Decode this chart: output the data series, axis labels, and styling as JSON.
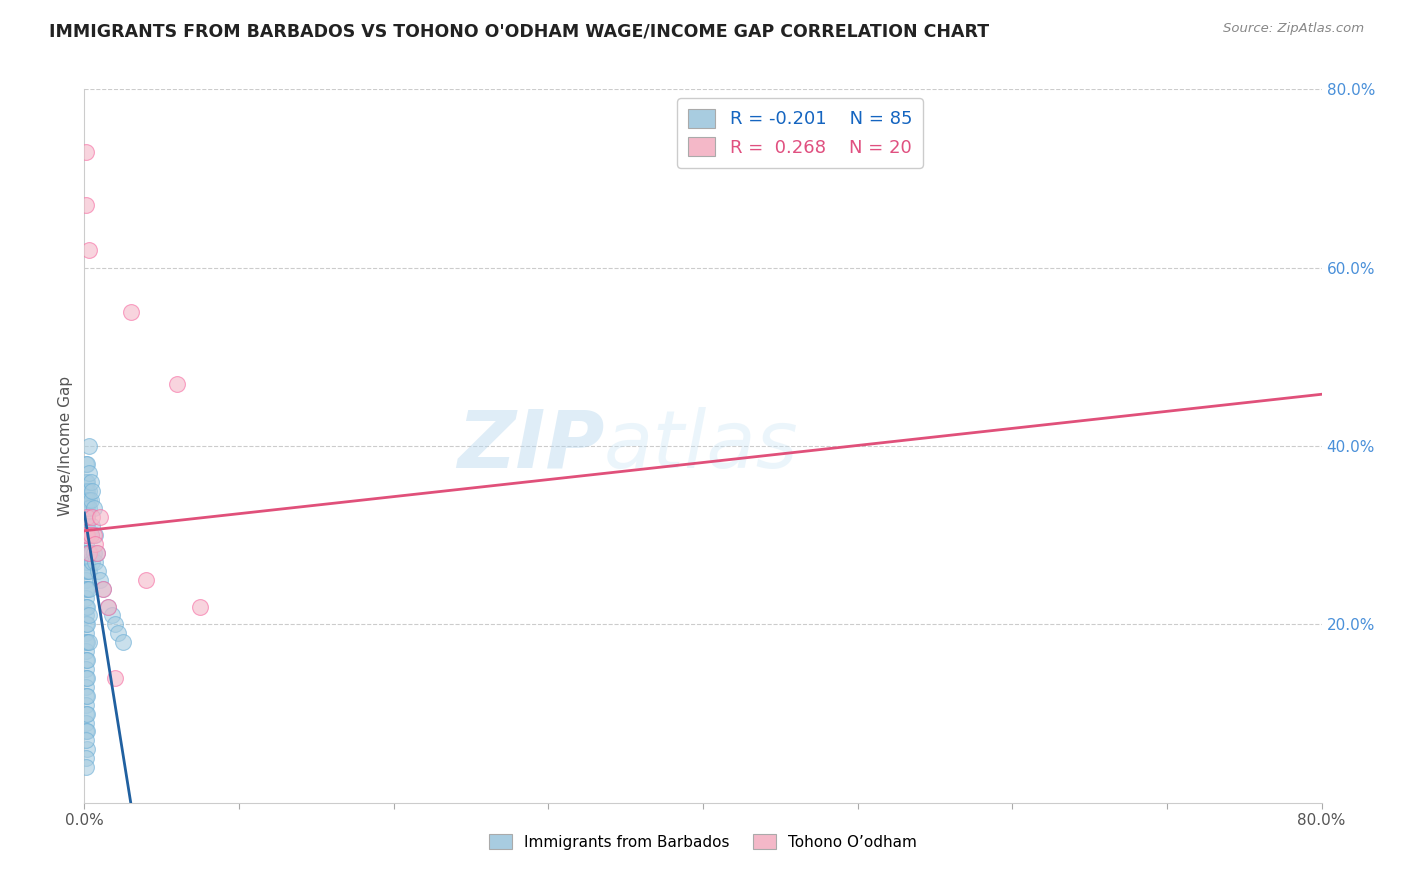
{
  "title": "IMMIGRANTS FROM BARBADOS VS TOHONO O'ODHAM WAGE/INCOME GAP CORRELATION CHART",
  "source": "Source: ZipAtlas.com",
  "ylabel": "Wage/Income Gap",
  "xlim": [
    0.0,
    0.8
  ],
  "ylim": [
    0.0,
    0.8
  ],
  "xtick_values": [
    0.0,
    0.1,
    0.2,
    0.3,
    0.4,
    0.5,
    0.6,
    0.7,
    0.8
  ],
  "xtick_labels_show": {
    "0.0": "0.0%",
    "0.8": "80.0%"
  },
  "ytick_labels_right": [
    "20.0%",
    "40.0%",
    "60.0%",
    "80.0%"
  ],
  "ytick_values_right": [
    0.2,
    0.4,
    0.6,
    0.8
  ],
  "blue_color": "#a8cce0",
  "blue_edge_color": "#6baed6",
  "pink_color": "#f4b8c8",
  "pink_edge_color": "#f768a1",
  "blue_line_color": "#2060a0",
  "pink_line_color": "#e0507a",
  "legend_line1": "R = -0.201    N = 85",
  "legend_line2": "R =  0.268    N = 20",
  "legend_label_blue": "Immigrants from Barbados",
  "legend_label_pink": "Tohono O’odham",
  "watermark_zip": "ZIP",
  "watermark_atlas": "atlas",
  "blue_x": [
    0.001,
    0.001,
    0.001,
    0.001,
    0.001,
    0.001,
    0.001,
    0.001,
    0.001,
    0.001,
    0.001,
    0.001,
    0.001,
    0.001,
    0.001,
    0.001,
    0.001,
    0.001,
    0.001,
    0.001,
    0.001,
    0.001,
    0.001,
    0.001,
    0.001,
    0.001,
    0.001,
    0.001,
    0.001,
    0.001,
    0.002,
    0.002,
    0.002,
    0.002,
    0.002,
    0.002,
    0.002,
    0.002,
    0.002,
    0.002,
    0.002,
    0.002,
    0.002,
    0.002,
    0.002,
    0.002,
    0.002,
    0.002,
    0.002,
    0.002,
    0.003,
    0.003,
    0.003,
    0.003,
    0.003,
    0.003,
    0.003,
    0.003,
    0.003,
    0.003,
    0.004,
    0.004,
    0.004,
    0.004,
    0.005,
    0.005,
    0.005,
    0.006,
    0.006,
    0.007,
    0.007,
    0.008,
    0.009,
    0.01,
    0.012,
    0.015,
    0.018,
    0.02,
    0.022,
    0.025,
    0.003,
    0.002,
    0.001,
    0.001,
    0.001
  ],
  "blue_y": [
    0.38,
    0.36,
    0.35,
    0.34,
    0.33,
    0.32,
    0.31,
    0.3,
    0.29,
    0.28,
    0.27,
    0.26,
    0.25,
    0.24,
    0.23,
    0.22,
    0.21,
    0.2,
    0.19,
    0.18,
    0.17,
    0.16,
    0.15,
    0.14,
    0.13,
    0.12,
    0.11,
    0.1,
    0.09,
    0.08,
    0.38,
    0.36,
    0.35,
    0.34,
    0.33,
    0.32,
    0.31,
    0.3,
    0.28,
    0.27,
    0.26,
    0.24,
    0.22,
    0.2,
    0.18,
    0.16,
    0.14,
    0.12,
    0.1,
    0.08,
    0.37,
    0.35,
    0.34,
    0.33,
    0.3,
    0.28,
    0.26,
    0.24,
    0.21,
    0.18,
    0.36,
    0.34,
    0.3,
    0.28,
    0.35,
    0.31,
    0.27,
    0.33,
    0.28,
    0.3,
    0.27,
    0.28,
    0.26,
    0.25,
    0.24,
    0.22,
    0.21,
    0.2,
    0.19,
    0.18,
    0.4,
    0.06,
    0.07,
    0.05,
    0.04
  ],
  "pink_x": [
    0.001,
    0.001,
    0.001,
    0.002,
    0.002,
    0.003,
    0.003,
    0.004,
    0.005,
    0.006,
    0.007,
    0.008,
    0.01,
    0.012,
    0.015,
    0.03,
    0.04,
    0.06,
    0.075,
    0.02
  ],
  "pink_y": [
    0.73,
    0.67,
    0.3,
    0.32,
    0.3,
    0.62,
    0.28,
    0.3,
    0.32,
    0.3,
    0.29,
    0.28,
    0.32,
    0.24,
    0.22,
    0.55,
    0.25,
    0.47,
    0.22,
    0.14
  ],
  "blue_trend_x": [
    0.0,
    0.03
  ],
  "blue_trend_y": [
    0.325,
    0.0
  ],
  "pink_trend_x": [
    0.0,
    0.8
  ],
  "pink_trend_y": [
    0.305,
    0.458
  ]
}
